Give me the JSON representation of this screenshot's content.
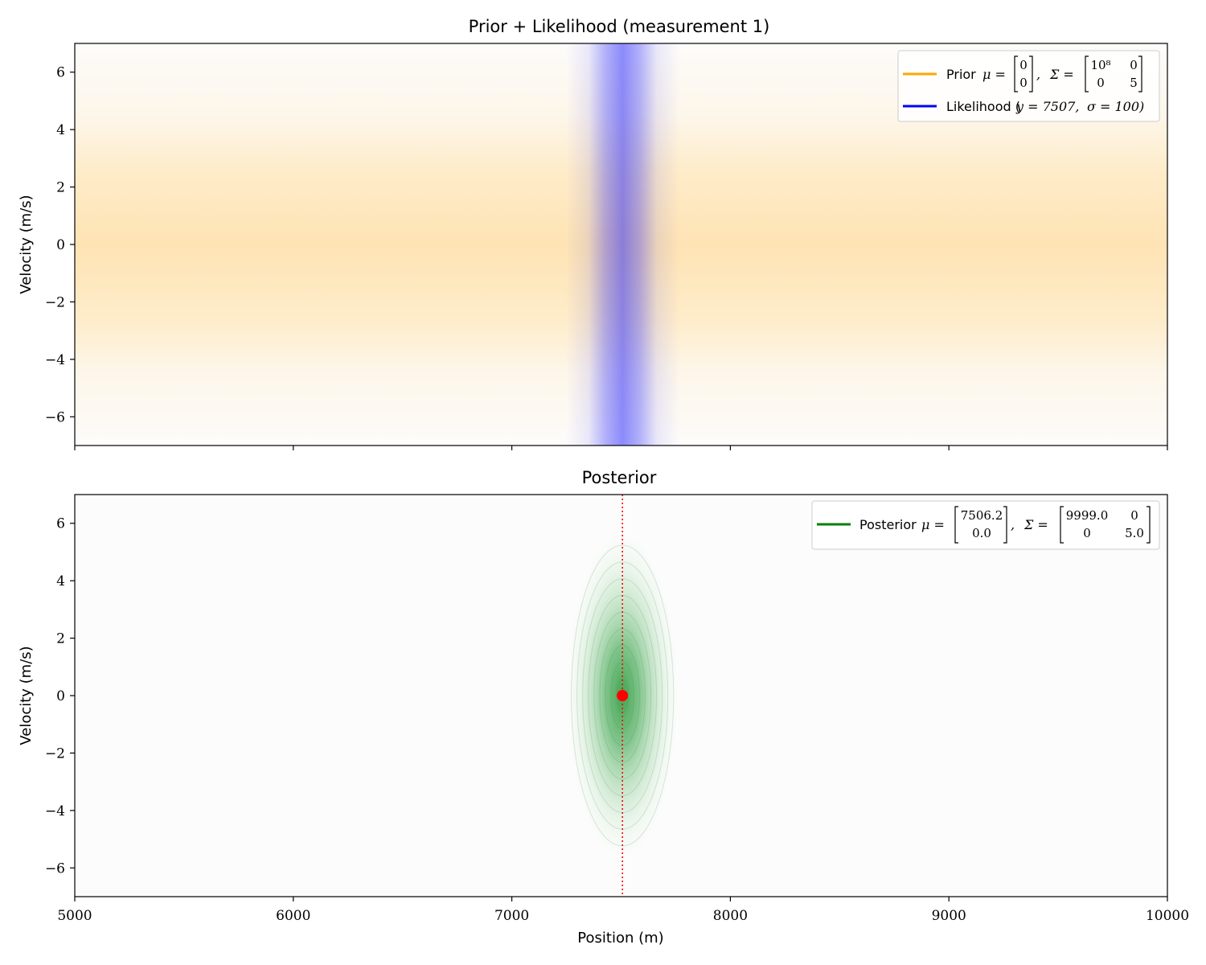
{
  "chart_data": [
    {
      "type": "heatmap",
      "title": "Prior + Likelihood (measurement 1)",
      "xlabel": "",
      "ylabel": "Velocity (m/s)",
      "xlim": [
        5000,
        10000
      ],
      "ylim": [
        -7,
        7
      ],
      "xticks": [
        5000,
        6000,
        7000,
        8000,
        9000,
        10000
      ],
      "xtick_labels_shown": false,
      "yticks": [
        -6,
        -4,
        -2,
        0,
        2,
        4,
        6
      ],
      "ytick_labels": [
        "−6",
        "−4",
        "−2",
        "0",
        "2",
        "4",
        "6"
      ],
      "grid": false,
      "legend_position": "top-right",
      "distributions": [
        {
          "name": "Prior",
          "color": "#ffa500",
          "mean": [
            0,
            0
          ],
          "covariance": [
            [
              100000000,
              0
            ],
            [
              0,
              5
            ]
          ],
          "legend_label": "Prior μ = [0; 0], Σ = [10⁸ 0; 0 5]"
        },
        {
          "name": "Likelihood",
          "color": "#0000ff",
          "measurement_y": 7507,
          "sigma": 100,
          "legend_label": "Likelihood (y = 7507, σ = 100)"
        }
      ]
    },
    {
      "type": "heatmap",
      "title": "Posterior",
      "xlabel": "Position (m)",
      "ylabel": "Velocity (m/s)",
      "xlim": [
        5000,
        10000
      ],
      "ylim": [
        -7,
        7
      ],
      "xticks": [
        5000,
        6000,
        7000,
        8000,
        9000,
        10000
      ],
      "xtick_labels": [
        "5000",
        "6000",
        "7000",
        "8000",
        "9000",
        "10000"
      ],
      "yticks": [
        -6,
        -4,
        -2,
        0,
        2,
        4,
        6
      ],
      "ytick_labels": [
        "−6",
        "−4",
        "−2",
        "0",
        "2",
        "4",
        "6"
      ],
      "grid": false,
      "legend_position": "top-right",
      "distributions": [
        {
          "name": "Posterior",
          "color": "#008000",
          "mean": [
            7506.2,
            0.0
          ],
          "covariance": [
            [
              9999.0,
              0
            ],
            [
              0,
              5.0
            ]
          ],
          "legend_label": "Posterior μ = [7506.2; 0.0], Σ = [9999.0 0; 0 5.0]"
        }
      ],
      "annotations": {
        "mean_marker": {
          "x": 7506.2,
          "y": 0.0,
          "color": "#ff0000"
        },
        "vertical_line": {
          "x": 7506.2,
          "style": "dotted",
          "color": "#ff0000"
        }
      }
    }
  ],
  "legend": {
    "prior_word": "Prior",
    "prior_mu_vec": [
      "0",
      "0"
    ],
    "prior_sigma_mat": [
      "10⁸",
      "0",
      "0",
      "5"
    ],
    "likelihood_text": "Likelihood (",
    "likelihood_y": "y = 7507,",
    "likelihood_sigma": "σ = 100)",
    "posterior_word": "Posterior",
    "posterior_mu_vec": [
      "7506.2",
      "0.0"
    ],
    "posterior_sigma_mat": [
      "9999.0",
      "0",
      "0",
      "5.0"
    ],
    "mu_eq": "μ =",
    "sigma_eq": "Σ ="
  }
}
